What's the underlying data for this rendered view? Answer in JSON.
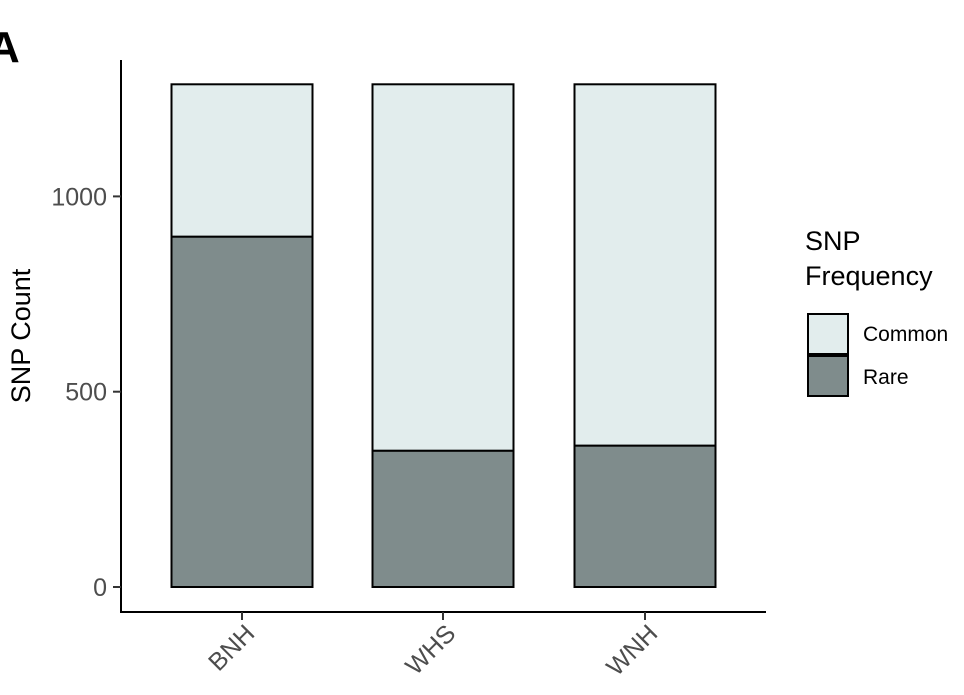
{
  "panel_tag": "A",
  "chart_data": {
    "type": "bar",
    "stacked": true,
    "categories": [
      "BNH",
      "WHS",
      "WNH"
    ],
    "series": [
      {
        "name": "Rare",
        "values": [
          897,
          349,
          362
        ]
      },
      {
        "name": "Common",
        "values": [
          390,
          938,
          925
        ]
      }
    ],
    "title": "",
    "xlabel": "",
    "ylabel": "SNP Count",
    "ylim": [
      0,
      1287
    ],
    "yticks": [
      0,
      500,
      1000
    ],
    "ytick_labels": [
      "0",
      "500",
      "1000"
    ],
    "grid": false,
    "legend": {
      "title_lines": [
        "SNP",
        "Frequency"
      ],
      "placement": "right",
      "items": [
        {
          "label": "Common",
          "color": "#e2eded"
        },
        {
          "label": "Rare",
          "color": "#7f8c8c"
        }
      ]
    },
    "colors": {
      "Rare": "#7f8c8c",
      "Common": "#e2eded",
      "bar_outline": "#000000"
    }
  }
}
